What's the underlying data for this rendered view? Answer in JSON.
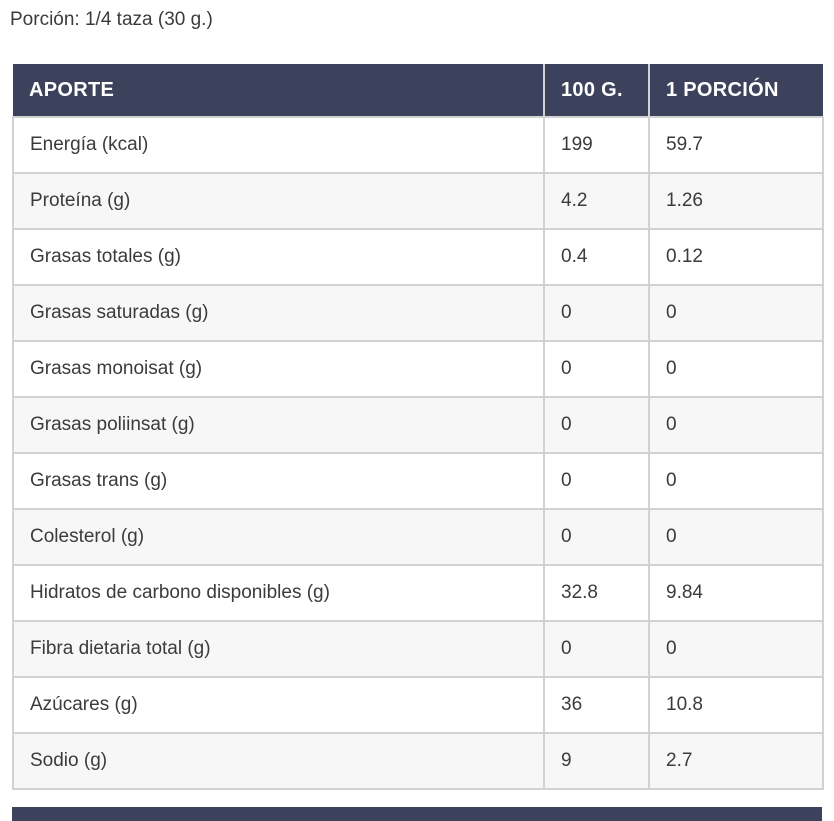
{
  "portion_label": "Porción: 1/4 taza (30 g.)",
  "table": {
    "columns": [
      "APORTE",
      "100 G.",
      "1 PORCIÓN"
    ],
    "rows": [
      {
        "label": "Energía (kcal)",
        "per_100g": "199",
        "per_portion": "59.7"
      },
      {
        "label": "Proteína (g)",
        "per_100g": "4.2",
        "per_portion": "1.26"
      },
      {
        "label": "Grasas totales (g)",
        "per_100g": "0.4",
        "per_portion": "0.12"
      },
      {
        "label": "Grasas saturadas (g)",
        "per_100g": "0",
        "per_portion": "0"
      },
      {
        "label": "Grasas monoisat (g)",
        "per_100g": "0",
        "per_portion": "0"
      },
      {
        "label": "Grasas poliinsat (g)",
        "per_100g": "0",
        "per_portion": "0"
      },
      {
        "label": "Grasas trans (g)",
        "per_100g": "0",
        "per_portion": "0"
      },
      {
        "label": "Colesterol (g)",
        "per_100g": "0",
        "per_portion": "0"
      },
      {
        "label": "Hidratos de carbono disponibles (g)",
        "per_100g": "32.8",
        "per_portion": "9.84"
      },
      {
        "label": "Fibra dietaria total (g)",
        "per_100g": "0",
        "per_portion": "0"
      },
      {
        "label": "Azúcares (g)",
        "per_100g": "36",
        "per_portion": "10.8"
      },
      {
        "label": "Sodio (g)",
        "per_100g": "9",
        "per_portion": "2.7"
      }
    ]
  },
  "colors": {
    "header_bg": "#3d425c",
    "header_text": "#ffffff",
    "row_stripe": "#f7f7f7",
    "border": "#d2d2d2",
    "body_text": "#3b3b3b"
  }
}
